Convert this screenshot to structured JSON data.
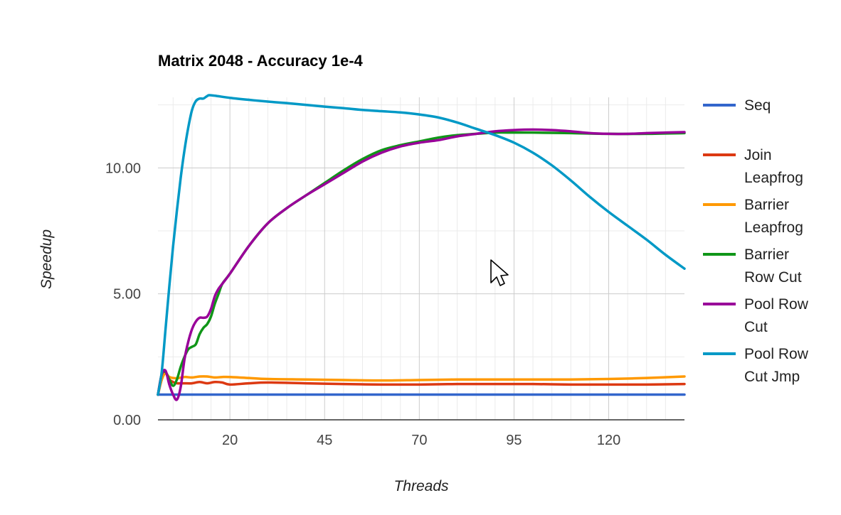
{
  "chart_data": {
    "type": "line",
    "title": "Matrix 2048 - Accuracy 1e-4",
    "xlabel": "Threads",
    "ylabel": "Speedup",
    "xlim": [
      1,
      140
    ],
    "ylim": [
      0,
      12.8
    ],
    "xticks": [
      20,
      45,
      70,
      95,
      120
    ],
    "xtick_labels": [
      "20",
      "45",
      "70",
      "95",
      "120"
    ],
    "yticks": [
      0,
      5,
      10
    ],
    "ytick_labels": [
      "0.00",
      "5.00",
      "10.00"
    ],
    "grid": true,
    "legend_position": "right",
    "series": [
      {
        "name": "Seq",
        "color": "#3366cc",
        "label_lines": [
          "Seq"
        ],
        "points": [
          [
            1,
            1.0
          ],
          [
            140,
            1.0
          ]
        ]
      },
      {
        "name": "Join Leapfrog",
        "color": "#dc3912",
        "label_lines": [
          "Join",
          "Leapfrog"
        ],
        "points": [
          [
            1,
            1.0
          ],
          [
            2,
            1.6
          ],
          [
            3,
            1.85
          ],
          [
            4,
            1.6
          ],
          [
            5,
            1.5
          ],
          [
            6,
            1.45
          ],
          [
            7,
            1.45
          ],
          [
            8,
            1.45
          ],
          [
            10,
            1.45
          ],
          [
            12,
            1.5
          ],
          [
            14,
            1.45
          ],
          [
            16,
            1.5
          ],
          [
            18,
            1.48
          ],
          [
            20,
            1.4
          ],
          [
            25,
            1.45
          ],
          [
            30,
            1.48
          ],
          [
            40,
            1.45
          ],
          [
            50,
            1.42
          ],
          [
            60,
            1.4
          ],
          [
            70,
            1.4
          ],
          [
            80,
            1.42
          ],
          [
            90,
            1.42
          ],
          [
            100,
            1.42
          ],
          [
            110,
            1.4
          ],
          [
            120,
            1.4
          ],
          [
            130,
            1.4
          ],
          [
            140,
            1.42
          ]
        ]
      },
      {
        "name": "Barrier Leapfrog",
        "color": "#ff9900",
        "label_lines": [
          "Barrier",
          "Leapfrog"
        ],
        "points": [
          [
            1,
            1.0
          ],
          [
            2,
            1.6
          ],
          [
            3,
            1.85
          ],
          [
            4,
            1.7
          ],
          [
            6,
            1.65
          ],
          [
            8,
            1.7
          ],
          [
            10,
            1.68
          ],
          [
            12,
            1.72
          ],
          [
            14,
            1.72
          ],
          [
            16,
            1.68
          ],
          [
            18,
            1.7
          ],
          [
            20,
            1.7
          ],
          [
            25,
            1.66
          ],
          [
            30,
            1.62
          ],
          [
            40,
            1.6
          ],
          [
            50,
            1.58
          ],
          [
            60,
            1.56
          ],
          [
            70,
            1.58
          ],
          [
            80,
            1.6
          ],
          [
            90,
            1.6
          ],
          [
            100,
            1.6
          ],
          [
            110,
            1.6
          ],
          [
            120,
            1.62
          ],
          [
            130,
            1.66
          ],
          [
            140,
            1.72
          ]
        ]
      },
      {
        "name": "Barrier Row Cut",
        "color": "#109618",
        "label_lines": [
          "Barrier",
          "Row Cut"
        ],
        "points": [
          [
            1,
            1.0
          ],
          [
            2,
            1.8
          ],
          [
            3,
            1.9
          ],
          [
            4,
            1.6
          ],
          [
            5,
            1.35
          ],
          [
            6,
            1.6
          ],
          [
            7,
            2.1
          ],
          [
            8,
            2.5
          ],
          [
            9,
            2.8
          ],
          [
            10,
            2.9
          ],
          [
            11,
            3.0
          ],
          [
            12,
            3.4
          ],
          [
            13,
            3.65
          ],
          [
            14,
            3.8
          ],
          [
            15,
            4.1
          ],
          [
            16,
            4.6
          ],
          [
            17,
            5.0
          ],
          [
            18,
            5.4
          ],
          [
            20,
            5.8
          ],
          [
            25,
            6.9
          ],
          [
            30,
            7.8
          ],
          [
            35,
            8.4
          ],
          [
            40,
            8.9
          ],
          [
            45,
            9.4
          ],
          [
            50,
            9.9
          ],
          [
            55,
            10.35
          ],
          [
            60,
            10.7
          ],
          [
            65,
            10.9
          ],
          [
            70,
            11.05
          ],
          [
            75,
            11.2
          ],
          [
            80,
            11.3
          ],
          [
            85,
            11.35
          ],
          [
            90,
            11.4
          ],
          [
            95,
            11.4
          ],
          [
            100,
            11.4
          ],
          [
            110,
            11.38
          ],
          [
            120,
            11.35
          ],
          [
            130,
            11.35
          ],
          [
            140,
            11.38
          ]
        ]
      },
      {
        "name": "Pool Row Cut",
        "color": "#990099",
        "label_lines": [
          "Pool Row",
          "Cut"
        ],
        "points": [
          [
            1,
            1.0
          ],
          [
            2,
            1.8
          ],
          [
            3,
            1.95
          ],
          [
            4,
            1.4
          ],
          [
            5,
            1.0
          ],
          [
            6,
            0.8
          ],
          [
            7,
            1.3
          ],
          [
            8,
            2.4
          ],
          [
            9,
            3.1
          ],
          [
            10,
            3.6
          ],
          [
            11,
            3.9
          ],
          [
            12,
            4.05
          ],
          [
            13,
            4.05
          ],
          [
            14,
            4.1
          ],
          [
            15,
            4.4
          ],
          [
            16,
            4.9
          ],
          [
            17,
            5.2
          ],
          [
            18,
            5.4
          ],
          [
            20,
            5.8
          ],
          [
            25,
            6.9
          ],
          [
            30,
            7.8
          ],
          [
            35,
            8.4
          ],
          [
            40,
            8.9
          ],
          [
            45,
            9.35
          ],
          [
            50,
            9.8
          ],
          [
            55,
            10.25
          ],
          [
            60,
            10.6
          ],
          [
            65,
            10.85
          ],
          [
            70,
            11.0
          ],
          [
            75,
            11.1
          ],
          [
            80,
            11.25
          ],
          [
            85,
            11.35
          ],
          [
            90,
            11.45
          ],
          [
            95,
            11.5
          ],
          [
            100,
            11.52
          ],
          [
            105,
            11.5
          ],
          [
            110,
            11.45
          ],
          [
            115,
            11.38
          ],
          [
            120,
            11.35
          ],
          [
            125,
            11.35
          ],
          [
            130,
            11.38
          ],
          [
            135,
            11.4
          ],
          [
            140,
            11.42
          ]
        ]
      },
      {
        "name": "Pool Row Cut Jmp",
        "color": "#0099c6",
        "label_lines": [
          "Pool Row",
          "Cut Jmp"
        ],
        "points": [
          [
            1,
            1.0
          ],
          [
            2,
            1.9
          ],
          [
            3,
            3.6
          ],
          [
            4,
            5.3
          ],
          [
            5,
            6.9
          ],
          [
            6,
            8.3
          ],
          [
            7,
            9.6
          ],
          [
            8,
            10.7
          ],
          [
            9,
            11.6
          ],
          [
            10,
            12.3
          ],
          [
            11,
            12.65
          ],
          [
            12,
            12.75
          ],
          [
            13,
            12.75
          ],
          [
            14,
            12.85
          ],
          [
            15,
            12.88
          ],
          [
            20,
            12.78
          ],
          [
            25,
            12.7
          ],
          [
            30,
            12.63
          ],
          [
            35,
            12.57
          ],
          [
            40,
            12.5
          ],
          [
            45,
            12.43
          ],
          [
            50,
            12.37
          ],
          [
            55,
            12.3
          ],
          [
            60,
            12.25
          ],
          [
            65,
            12.2
          ],
          [
            70,
            12.12
          ],
          [
            75,
            12.0
          ],
          [
            80,
            11.8
          ],
          [
            85,
            11.55
          ],
          [
            90,
            11.3
          ],
          [
            95,
            11.0
          ],
          [
            100,
            10.6
          ],
          [
            105,
            10.1
          ],
          [
            110,
            9.5
          ],
          [
            115,
            8.85
          ],
          [
            120,
            8.25
          ],
          [
            125,
            7.7
          ],
          [
            130,
            7.15
          ],
          [
            135,
            6.55
          ],
          [
            140,
            6.0
          ]
        ]
      }
    ]
  }
}
